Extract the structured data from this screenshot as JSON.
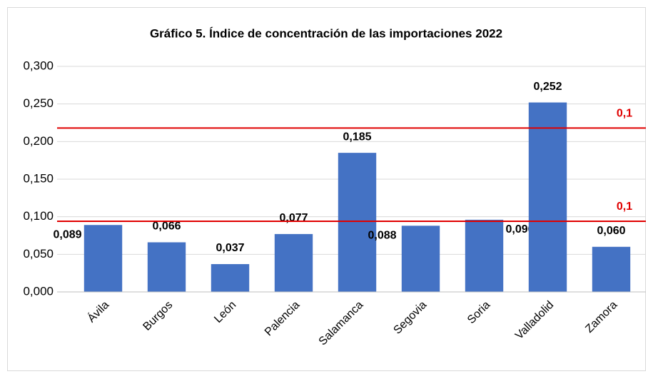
{
  "chart_data": {
    "type": "bar",
    "title": "Gráfico 5. Índice de concentración de las importaciones 2022",
    "categories": [
      "Ávila",
      "Burgos",
      "León",
      "Palencia",
      "Salamanca",
      "Segovia",
      "Soria",
      "Valladolid",
      "Zamora"
    ],
    "values": [
      0.089,
      0.066,
      0.037,
      0.077,
      0.185,
      0.088,
      0.096,
      0.252,
      0.06
    ],
    "value_labels": [
      "0,089",
      "0,066",
      "0,037",
      "0,077",
      "0,185",
      "0,088",
      "0,096",
      "0,252",
      "0,060"
    ],
    "color": "#4472c4",
    "ylim": [
      0,
      0.3
    ],
    "yticks": [
      {
        "value": 0,
        "label": "0,000"
      },
      {
        "value": 0.05,
        "label": "0,050"
      },
      {
        "value": 0.1,
        "label": "0,100"
      },
      {
        "value": 0.15,
        "label": "0,150"
      },
      {
        "value": 0.2,
        "label": "0,200"
      },
      {
        "value": 0.25,
        "label": "0,250"
      },
      {
        "value": 0.3,
        "label": "0,300"
      }
    ],
    "grid": true,
    "reference_lines": {
      "values": [
        0.218,
        0.094
      ],
      "color": "#e00000"
    },
    "annotations": [
      "0,1",
      "0,1"
    ]
  }
}
